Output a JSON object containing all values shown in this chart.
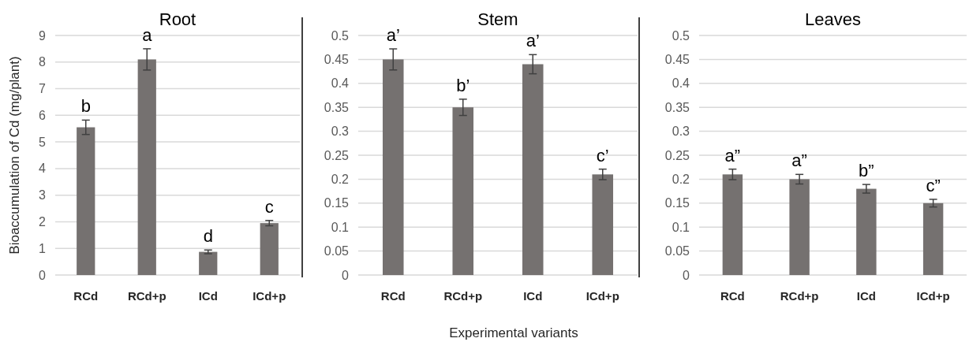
{
  "chart_data": [
    {
      "type": "bar",
      "title": "Root",
      "ylabel": "Bioaccumulation of Cd (mg/plant)",
      "categories": [
        "RCd",
        "RCd+p",
        "ICd",
        "ICd+p"
      ],
      "values": [
        5.55,
        8.1,
        0.87,
        1.95
      ],
      "errors": [
        0.27,
        0.4,
        0.07,
        0.1
      ],
      "color": "#757170",
      "ylim": [
        0,
        9
      ],
      "yticks": [
        0,
        1,
        2,
        3,
        4,
        5,
        6,
        7,
        8,
        9
      ],
      "grid": "y",
      "annotations": [
        "b",
        "a",
        "d",
        "c"
      ]
    },
    {
      "type": "bar",
      "title": "Stem",
      "xlabel": "Experimental variants",
      "categories": [
        "RCd",
        "RCd+p",
        "ICd",
        "ICd+p"
      ],
      "values": [
        0.45,
        0.35,
        0.44,
        0.21
      ],
      "errors": [
        0.022,
        0.017,
        0.02,
        0.011
      ],
      "color": "#757170",
      "ylim": [
        0,
        0.5
      ],
      "yticks": [
        0,
        0.05,
        0.1,
        0.15,
        0.2,
        0.25,
        0.3,
        0.35,
        0.4,
        0.45,
        0.5
      ],
      "grid": "y",
      "annotations": [
        "a’",
        "b’",
        "a’",
        "c’"
      ]
    },
    {
      "type": "bar",
      "title": "Leaves",
      "categories": [
        "RCd",
        "RCd+p",
        "ICd",
        "ICd+p"
      ],
      "values": [
        0.21,
        0.2,
        0.18,
        0.15
      ],
      "errors": [
        0.011,
        0.01,
        0.009,
        0.008
      ],
      "color": "#757170",
      "ylim": [
        0,
        0.5
      ],
      "yticks": [
        0,
        0.05,
        0.1,
        0.15,
        0.2,
        0.25,
        0.3,
        0.35,
        0.4,
        0.45,
        0.5
      ],
      "grid": "y",
      "annotations": [
        "a”",
        "a”",
        "b”",
        "c”"
      ]
    }
  ]
}
